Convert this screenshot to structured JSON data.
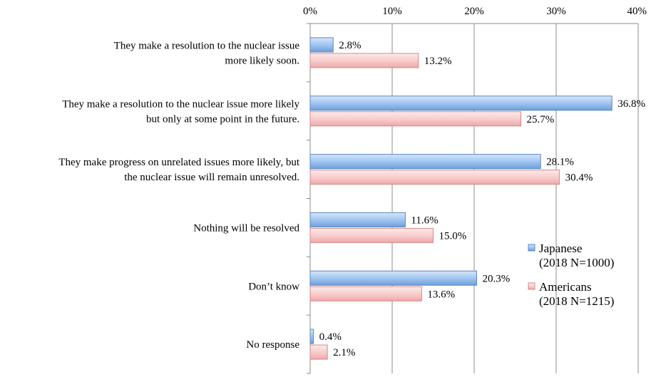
{
  "chart_data": {
    "type": "bar",
    "orientation": "horizontal",
    "xlim": [
      0,
      40
    ],
    "ticks": [
      {
        "value": 0,
        "label": "0%"
      },
      {
        "value": 10,
        "label": "10%"
      },
      {
        "value": 20,
        "label": "20%"
      },
      {
        "value": 30,
        "label": "30%"
      },
      {
        "value": 40,
        "label": "40%"
      }
    ],
    "grid": true,
    "legend_position": "right",
    "categories": [
      [
        "They make a resolution to the nuclear issue",
        "more likely soon."
      ],
      [
        "They make a resolution to the nuclear issue more likely",
        "but only at some point in the future."
      ],
      [
        "They make progress on unrelated issues more likely, but",
        "the nuclear issue will remain unresolved."
      ],
      [
        "Nothing will be resolved"
      ],
      [
        "Don’t know"
      ],
      [
        "No response"
      ]
    ],
    "series": [
      {
        "name": "Japanese",
        "name_sub": "(2018 N=1000)",
        "values": [
          2.8,
          36.8,
          28.1,
          11.6,
          20.3,
          0.4
        ],
        "labels": [
          "2.8%",
          "36.8%",
          "28.1%",
          "11.6%",
          "20.3%",
          "0.4%"
        ],
        "color_light": "#d6e6fa",
        "color_mid": "#9cc2f0",
        "color_dark": "#6f9fd8",
        "stroke": "#5b86c0"
      },
      {
        "name": "Americans",
        "name_sub": "(2018 N=1215)",
        "values": [
          13.2,
          25.7,
          30.4,
          15.0,
          13.6,
          2.1
        ],
        "labels": [
          "13.2%",
          "25.7%",
          "30.4%",
          "15.0%",
          "13.6%",
          "2.1%"
        ],
        "color_light": "#fdeaea",
        "color_mid": "#f8caca",
        "color_dark": "#eea8a8",
        "stroke": "#d48a8a"
      }
    ]
  }
}
